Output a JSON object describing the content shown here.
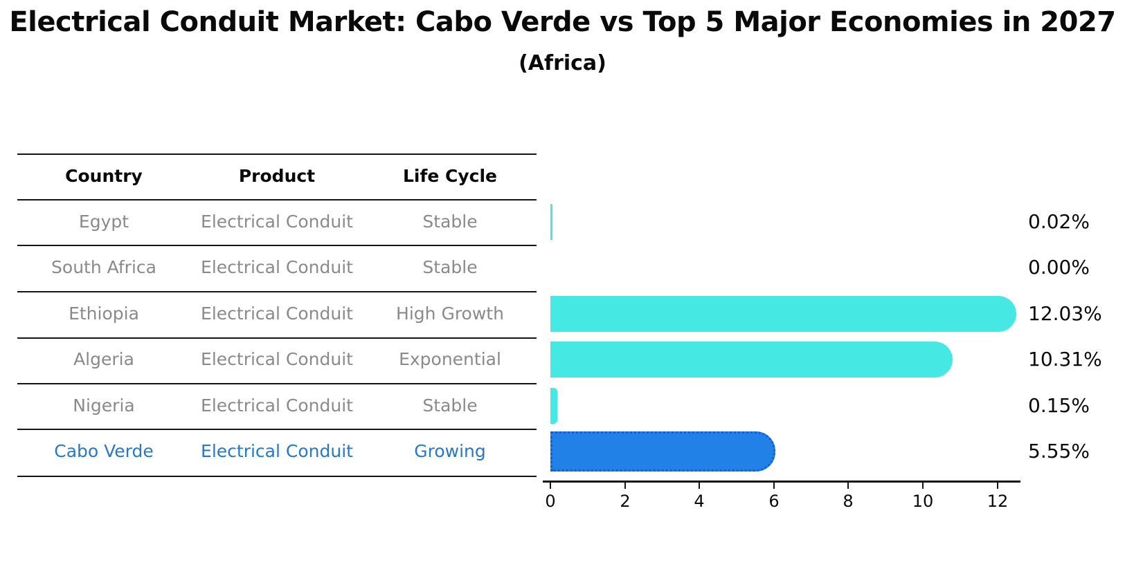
{
  "title": "Electrical Conduit Market: Cabo Verde vs Top 5 Major Economies in 2027",
  "subtitle": "(Africa)",
  "table": {
    "headers": [
      "Country",
      "Product",
      "Life Cycle"
    ],
    "rows": [
      {
        "country": "Egypt",
        "product": "Electrical Conduit",
        "life_cycle": "Stable"
      },
      {
        "country": "South Africa",
        "product": "Electrical Conduit",
        "life_cycle": "Stable"
      },
      {
        "country": "Ethiopia",
        "product": "Electrical Conduit",
        "life_cycle": "High Growth"
      },
      {
        "country": "Algeria",
        "product": "Electrical Conduit",
        "life_cycle": "Exponential"
      },
      {
        "country": "Nigeria",
        "product": "Electrical Conduit",
        "life_cycle": "Stable"
      },
      {
        "country": "Cabo Verde",
        "product": "Electrical Conduit",
        "life_cycle": "Growing"
      }
    ],
    "highlighted_row": "Cabo Verde"
  },
  "chart_data": {
    "type": "bar",
    "orientation": "horizontal",
    "title": "Electrical Conduit Market: Cabo Verde vs Top 5 Major Economies in 2027 (Africa)",
    "categories": [
      "Egypt",
      "South Africa",
      "Ethiopia",
      "Algeria",
      "Nigeria",
      "Cabo Verde"
    ],
    "values": [
      0.02,
      0.0,
      12.03,
      10.31,
      0.15,
      5.55
    ],
    "value_labels": [
      "0.02%",
      "0.00%",
      "12.03%",
      "10.31%",
      "0.15%",
      "5.55%"
    ],
    "xticks": [
      0,
      2,
      4,
      6,
      8,
      10,
      12
    ],
    "xtick_labels": [
      "0",
      "2",
      "4",
      "6",
      "8",
      "10",
      "12"
    ],
    "xlim": [
      0,
      12.7
    ],
    "xlabel": "",
    "ylabel": "",
    "grid": false,
    "legend": false,
    "highlight_index": 5
  },
  "colors": {
    "bar_default": "#45e8e3",
    "bar_highlight": "#2181e7",
    "bar_highlight_border": "#105fd6",
    "highlight_text": "#2878c4",
    "table_text": "#8a8a8a",
    "axis_text": "#0a0a0a"
  }
}
